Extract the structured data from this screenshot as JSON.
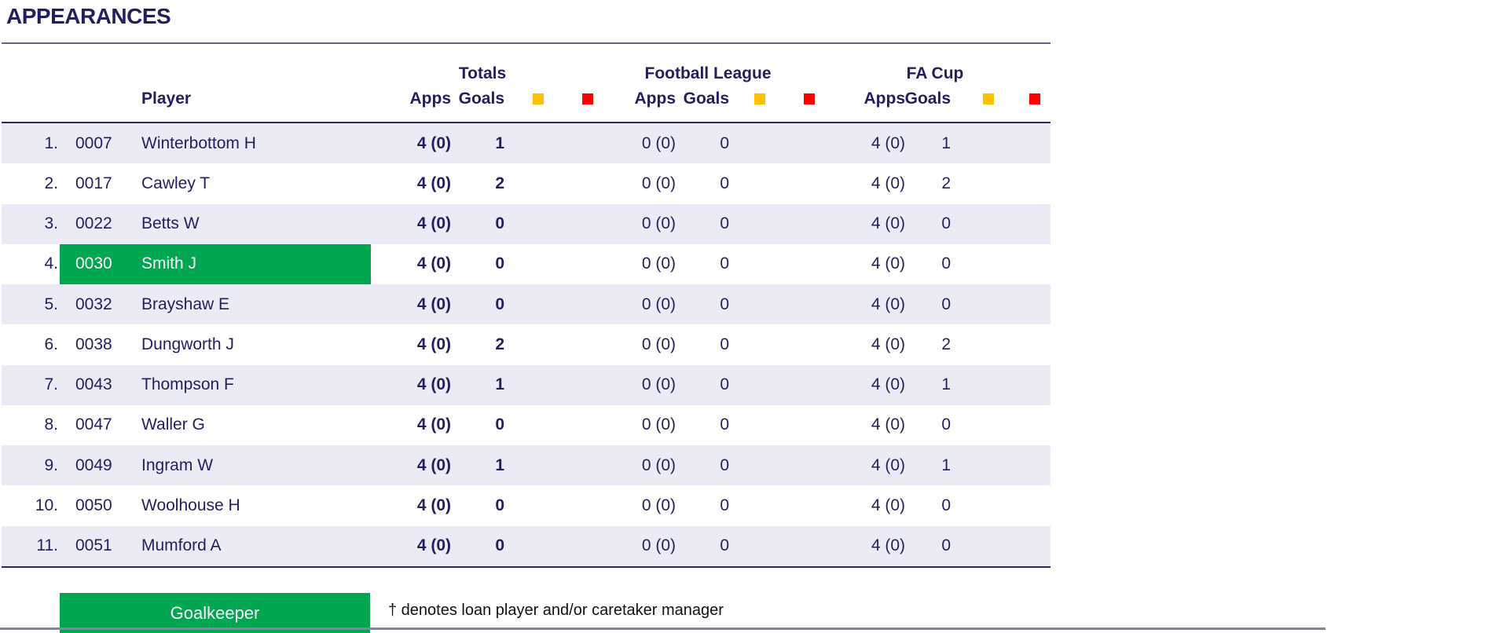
{
  "title": "APPEARANCES",
  "table": {
    "groups": [
      {
        "label": "Totals"
      },
      {
        "label": "Football League"
      },
      {
        "label": "FA Cup"
      }
    ],
    "subheaders": {
      "player": "Player",
      "apps": "Apps",
      "goals": "Goals"
    },
    "players": [
      {
        "pos": "1.",
        "id": "0007",
        "name": "Winterbottom H",
        "goalkeeper": false,
        "totals": {
          "apps": "4 (0)",
          "goals": "1",
          "yellow": "",
          "red": ""
        },
        "fl": {
          "apps": "0 (0)",
          "goals": "0",
          "yellow": "",
          "red": ""
        },
        "fa": {
          "apps": "4 (0)",
          "goals": "1",
          "yellow": "",
          "red": ""
        }
      },
      {
        "pos": "2.",
        "id": "0017",
        "name": "Cawley T",
        "goalkeeper": false,
        "totals": {
          "apps": "4 (0)",
          "goals": "2",
          "yellow": "",
          "red": ""
        },
        "fl": {
          "apps": "0 (0)",
          "goals": "0",
          "yellow": "",
          "red": ""
        },
        "fa": {
          "apps": "4 (0)",
          "goals": "2",
          "yellow": "",
          "red": ""
        }
      },
      {
        "pos": "3.",
        "id": "0022",
        "name": "Betts W",
        "goalkeeper": false,
        "totals": {
          "apps": "4 (0)",
          "goals": "0",
          "yellow": "",
          "red": ""
        },
        "fl": {
          "apps": "0 (0)",
          "goals": "0",
          "yellow": "",
          "red": ""
        },
        "fa": {
          "apps": "4 (0)",
          "goals": "0",
          "yellow": "",
          "red": ""
        }
      },
      {
        "pos": "4.",
        "id": "0030",
        "name": "Smith J",
        "goalkeeper": true,
        "totals": {
          "apps": "4 (0)",
          "goals": "0",
          "yellow": "",
          "red": ""
        },
        "fl": {
          "apps": "0 (0)",
          "goals": "0",
          "yellow": "",
          "red": ""
        },
        "fa": {
          "apps": "4 (0)",
          "goals": "0",
          "yellow": "",
          "red": ""
        }
      },
      {
        "pos": "5.",
        "id": "0032",
        "name": "Brayshaw E",
        "goalkeeper": false,
        "totals": {
          "apps": "4 (0)",
          "goals": "0",
          "yellow": "",
          "red": ""
        },
        "fl": {
          "apps": "0 (0)",
          "goals": "0",
          "yellow": "",
          "red": ""
        },
        "fa": {
          "apps": "4 (0)",
          "goals": "0",
          "yellow": "",
          "red": ""
        }
      },
      {
        "pos": "6.",
        "id": "0038",
        "name": "Dungworth J",
        "goalkeeper": false,
        "totals": {
          "apps": "4 (0)",
          "goals": "2",
          "yellow": "",
          "red": ""
        },
        "fl": {
          "apps": "0 (0)",
          "goals": "0",
          "yellow": "",
          "red": ""
        },
        "fa": {
          "apps": "4 (0)",
          "goals": "2",
          "yellow": "",
          "red": ""
        }
      },
      {
        "pos": "7.",
        "id": "0043",
        "name": "Thompson F",
        "goalkeeper": false,
        "totals": {
          "apps": "4 (0)",
          "goals": "1",
          "yellow": "",
          "red": ""
        },
        "fl": {
          "apps": "0 (0)",
          "goals": "0",
          "yellow": "",
          "red": ""
        },
        "fa": {
          "apps": "4 (0)",
          "goals": "1",
          "yellow": "",
          "red": ""
        }
      },
      {
        "pos": "8.",
        "id": "0047",
        "name": "Waller G",
        "goalkeeper": false,
        "totals": {
          "apps": "4 (0)",
          "goals": "0",
          "yellow": "",
          "red": ""
        },
        "fl": {
          "apps": "0 (0)",
          "goals": "0",
          "yellow": "",
          "red": ""
        },
        "fa": {
          "apps": "4 (0)",
          "goals": "0",
          "yellow": "",
          "red": ""
        }
      },
      {
        "pos": "9.",
        "id": "0049",
        "name": "Ingram W",
        "goalkeeper": false,
        "totals": {
          "apps": "4 (0)",
          "goals": "1",
          "yellow": "",
          "red": ""
        },
        "fl": {
          "apps": "0 (0)",
          "goals": "0",
          "yellow": "",
          "red": ""
        },
        "fa": {
          "apps": "4 (0)",
          "goals": "1",
          "yellow": "",
          "red": ""
        }
      },
      {
        "pos": "10.",
        "id": "0050",
        "name": "Woolhouse H",
        "goalkeeper": false,
        "totals": {
          "apps": "4 (0)",
          "goals": "0",
          "yellow": "",
          "red": ""
        },
        "fl": {
          "apps": "0 (0)",
          "goals": "0",
          "yellow": "",
          "red": ""
        },
        "fa": {
          "apps": "4 (0)",
          "goals": "0",
          "yellow": "",
          "red": ""
        }
      },
      {
        "pos": "11.",
        "id": "0051",
        "name": "Mumford A",
        "goalkeeper": false,
        "totals": {
          "apps": "4 (0)",
          "goals": "0",
          "yellow": "",
          "red": ""
        },
        "fl": {
          "apps": "0 (0)",
          "goals": "0",
          "yellow": "",
          "red": ""
        },
        "fa": {
          "apps": "4 (0)",
          "goals": "0",
          "yellow": "",
          "red": ""
        }
      }
    ]
  },
  "legend": {
    "goalkeeper": "Goalkeeper",
    "footnote": "† denotes loan player and/or caretaker manager"
  },
  "colors": {
    "navy": "#221E5F",
    "green": "#00A650",
    "yellow": "#FFC000",
    "red": "#FF0000",
    "row_alt": "#EBEBF5"
  }
}
